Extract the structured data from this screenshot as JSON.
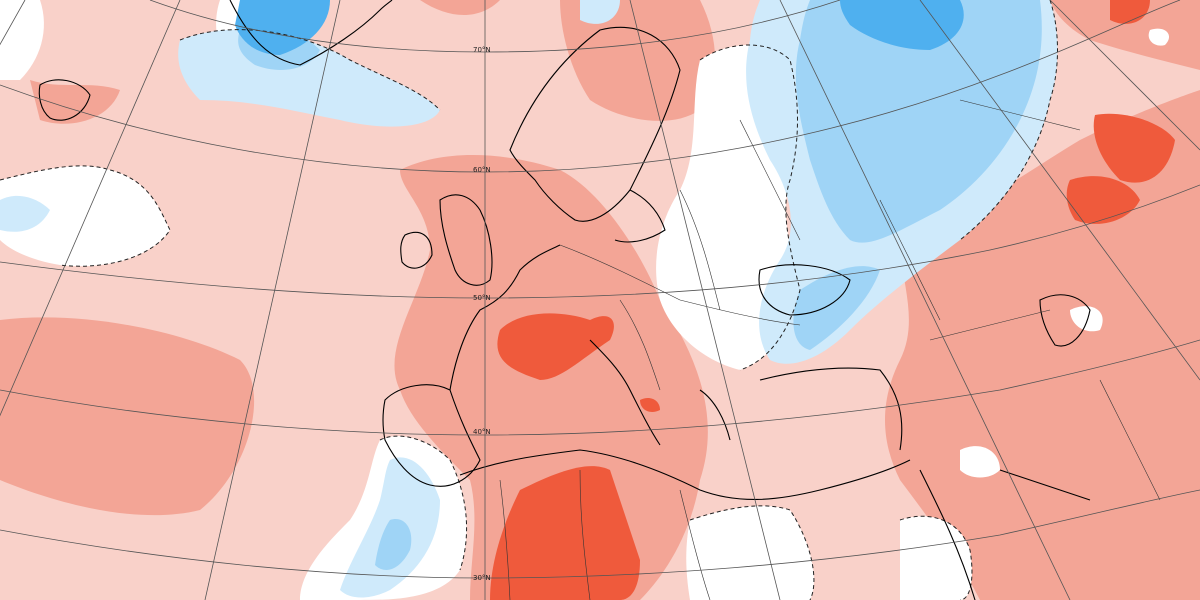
{
  "map": {
    "type": "temperature-anomaly-map",
    "region": "Europe / North Atlantic / North Africa",
    "latitude_labels": [
      "70°N",
      "60°N",
      "50°N",
      "40°N",
      "30°N"
    ],
    "colors": {
      "warm_light": "#f9d1c9",
      "warm_medium": "#f3a596",
      "warm_strong": "#ef5a3c",
      "neutral": "#ffffff",
      "cool_light": "#cfeafb",
      "cool_medium": "#9fd4f6",
      "cool_strong": "#4fb0ef",
      "coastline": "#000000",
      "graticule": "#555555"
    }
  }
}
